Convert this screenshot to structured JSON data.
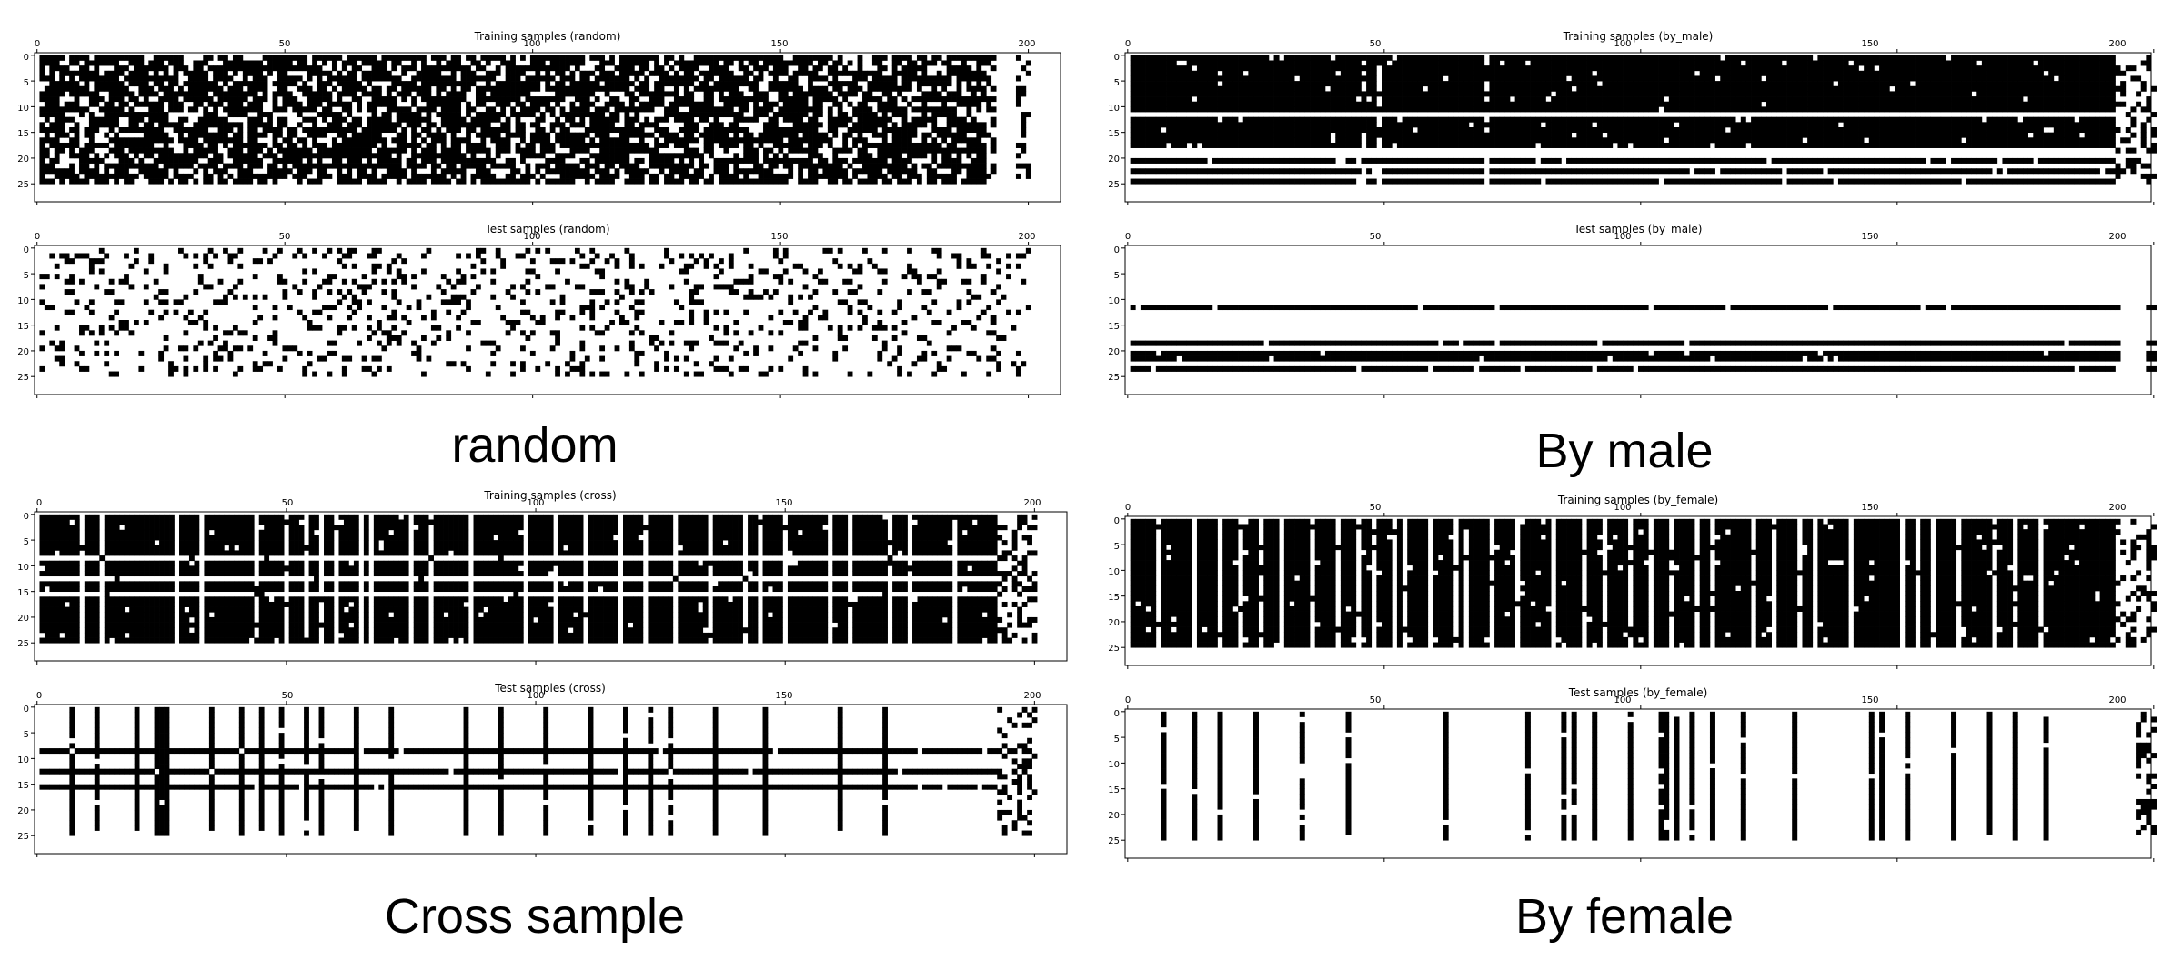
{
  "figure": {
    "captions": [
      "random",
      "By male",
      "Cross sample",
      "By female"
    ]
  },
  "chart_data": [
    {
      "type": "heatmap",
      "title": "Training samples (random)",
      "group": "random",
      "xlim": [
        0,
        207
      ],
      "ylim": [
        0,
        29
      ],
      "xticks": [
        0,
        50,
        100,
        150,
        200
      ],
      "yticks": [
        0,
        5,
        10,
        15,
        20,
        25
      ],
      "grid": false,
      "colormap": {
        "filled": "#000000",
        "empty": "#ffffff"
      },
      "mask": {
        "cols": 200,
        "rows": 25,
        "pattern": "random",
        "fill_rate": 0.72,
        "seed": 11,
        "row_stripes": [],
        "row_gap_rows": [],
        "column_stripes": [],
        "column_gap_cols": [],
        "gap_cols": [
          193,
          194,
          195,
          196
        ],
        "sparse_tail_from": 191
      }
    },
    {
      "type": "heatmap",
      "title": "Test samples (random)",
      "group": "random",
      "xlim": [
        0,
        207
      ],
      "ylim": [
        0,
        29
      ],
      "xticks": [
        0,
        50,
        100,
        150,
        200
      ],
      "yticks": [
        0,
        5,
        10,
        15,
        20,
        25
      ],
      "grid": false,
      "colormap": {
        "filled": "#000000",
        "empty": "#ffffff"
      },
      "mask": {
        "cols": 200,
        "rows": 25,
        "pattern": "random",
        "fill_rate": 0.18,
        "seed": 23,
        "row_stripes": [],
        "row_gap_rows": [],
        "column_stripes": [],
        "column_gap_cols": [],
        "gap_cols": [],
        "sparse_tail_from": 200
      }
    },
    {
      "type": "heatmap",
      "title": "Training samples (by_male)",
      "group": "By male",
      "xlim": [
        0,
        200
      ],
      "ylim": [
        0,
        29
      ],
      "xticks": [
        0,
        50,
        100,
        150,
        200
      ],
      "yticks": [
        0,
        5,
        10,
        15,
        20,
        25
      ],
      "grid": false,
      "colormap": {
        "filled": "#000000",
        "empty": "#ffffff"
      },
      "mask": {
        "cols": 200,
        "rows": 25,
        "pattern": "rows",
        "fill_rate": 0.97,
        "seed": 37,
        "row_stripes": [],
        "row_gap_rows": [
          11,
          18,
          19,
          21,
          23
        ],
        "column_stripes": [],
        "column_gap_cols": [
          45,
          48,
          69
        ],
        "gap_cols": [],
        "sparse_tail_from": 192
      }
    },
    {
      "type": "heatmap",
      "title": "Test samples (by_male)",
      "group": "By male",
      "xlim": [
        0,
        200
      ],
      "ylim": [
        0,
        29
      ],
      "xticks": [
        0,
        50,
        100,
        150,
        200
      ],
      "yticks": [
        0,
        5,
        10,
        15,
        20,
        25
      ],
      "grid": false,
      "colormap": {
        "filled": "#000000",
        "empty": "#ffffff"
      },
      "mask": {
        "cols": 200,
        "rows": 25,
        "pattern": "rows",
        "fill_rate": 0.0,
        "seed": 41,
        "row_stripes": [
          11,
          18,
          20,
          21,
          23
        ],
        "row_gap_rows": [],
        "column_stripes": [],
        "column_gap_cols": [],
        "gap_cols": [
          193,
          194,
          195,
          196,
          197
        ],
        "sparse_tail_from": 200
      }
    },
    {
      "type": "heatmap",
      "title": "Training samples (cross)",
      "group": "Cross sample",
      "xlim": [
        0,
        207
      ],
      "ylim": [
        0,
        29
      ],
      "xticks": [
        0,
        50,
        100,
        150,
        200
      ],
      "yticks": [
        0,
        5,
        10,
        15,
        20,
        25
      ],
      "grid": false,
      "colormap": {
        "filled": "#000000",
        "empty": "#ffffff"
      },
      "mask": {
        "cols": 200,
        "rows": 25,
        "pattern": "grid",
        "fill_rate": 0.97,
        "seed": 53,
        "row_stripes": [],
        "row_gap_rows": [
          8,
          12,
          15
        ],
        "column_stripes": [],
        "column_gap_cols": [
          8,
          12,
          27,
          32,
          43,
          49,
          53,
          56,
          59,
          64,
          66,
          74,
          78,
          86,
          97,
          103,
          109,
          116,
          121,
          127,
          134,
          141,
          144,
          149,
          158,
          162,
          170,
          174,
          183
        ],
        "gap_cols": [],
        "sparse_tail_from": 192
      }
    },
    {
      "type": "heatmap",
      "title": "Test samples (cross)",
      "group": "Cross sample",
      "xlim": [
        0,
        207
      ],
      "ylim": [
        0,
        29
      ],
      "xticks": [
        0,
        50,
        100,
        150,
        200
      ],
      "yticks": [
        0,
        5,
        10,
        15,
        20,
        25
      ],
      "grid": false,
      "colormap": {
        "filled": "#000000",
        "empty": "#ffffff"
      },
      "mask": {
        "cols": 200,
        "rows": 25,
        "pattern": "grid",
        "fill_rate": 0.0,
        "seed": 61,
        "row_stripes": [
          8,
          12,
          15
        ],
        "row_gap_rows": [],
        "column_stripes": [
          6,
          11,
          19,
          23,
          24,
          25,
          34,
          40,
          44,
          48,
          53,
          56,
          63,
          70,
          85,
          92,
          101,
          110,
          117,
          122,
          126,
          135,
          145,
          160,
          169
        ],
        "column_gap_cols": [],
        "gap_cols": [],
        "sparse_tail_from": 192
      }
    },
    {
      "type": "heatmap",
      "title": "Training samples (by_female)",
      "group": "By female",
      "xlim": [
        0,
        200
      ],
      "ylim": [
        0,
        29
      ],
      "xticks": [
        0,
        50,
        100,
        150,
        200
      ],
      "yticks": [
        0,
        5,
        10,
        15,
        20,
        25
      ],
      "grid": false,
      "colormap": {
        "filled": "#000000",
        "empty": "#ffffff"
      },
      "mask": {
        "cols": 200,
        "rows": 25,
        "pattern": "cols",
        "fill_rate": 0.97,
        "seed": 71,
        "row_stripes": [],
        "row_gap_rows": [],
        "column_stripes": [],
        "column_gap_cols": [
          5,
          12,
          17,
          21,
          25,
          29,
          35,
          40,
          44,
          47,
          51,
          53,
          58,
          63,
          65,
          70,
          75,
          82,
          88,
          92,
          97,
          101,
          105,
          110,
          113,
          121,
          125,
          130,
          133,
          140,
          150,
          153,
          156,
          161,
          168,
          172,
          177
        ],
        "gap_cols": [],
        "sparse_tail_from": 192
      }
    },
    {
      "type": "heatmap",
      "title": "Test samples (by_female)",
      "group": "By female",
      "xlim": [
        0,
        200
      ],
      "ylim": [
        0,
        29
      ],
      "xticks": [
        0,
        50,
        100,
        150,
        200
      ],
      "yticks": [
        0,
        5,
        10,
        15,
        20,
        25
      ],
      "grid": false,
      "colormap": {
        "filled": "#000000",
        "empty": "#ffffff"
      },
      "mask": {
        "cols": 200,
        "rows": 25,
        "pattern": "cols",
        "fill_rate": 0.0,
        "seed": 83,
        "row_stripes": [],
        "row_gap_rows": [],
        "column_stripes": [
          6,
          12,
          17,
          24,
          33,
          42,
          61,
          77,
          84,
          86,
          90,
          97,
          103,
          104,
          106,
          109,
          113,
          119,
          129,
          144,
          146,
          151,
          160,
          167,
          172,
          178
        ],
        "column_gap_cols": [],
        "gap_cols": [],
        "sparse_tail_from": 196
      }
    }
  ]
}
